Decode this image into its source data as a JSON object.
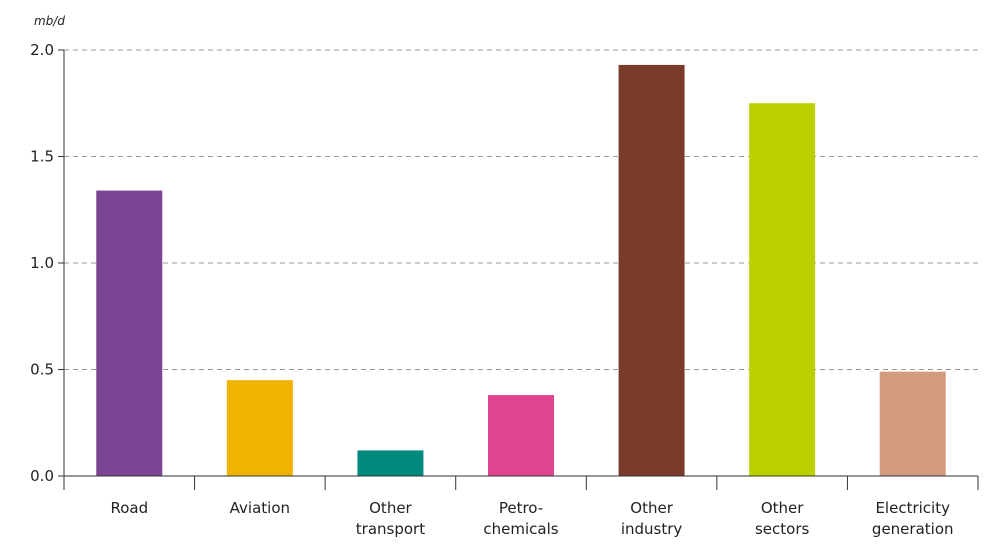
{
  "chart_data": {
    "type": "bar",
    "unit": "mb/d",
    "categories": [
      [
        "Road"
      ],
      [
        "Aviation"
      ],
      [
        "Other",
        "transport"
      ],
      [
        "Petro-",
        "chemicals"
      ],
      [
        "Other",
        "industry"
      ],
      [
        "Other",
        "sectors"
      ],
      [
        "Electricity",
        "generation"
      ]
    ],
    "values": [
      1.34,
      0.45,
      0.12,
      0.38,
      1.93,
      1.75,
      0.49
    ],
    "colors": [
      "#7b4593",
      "#f0b400",
      "#008a7d",
      "#e0448e",
      "#7b3b2b",
      "#bcd000",
      "#d49a7e"
    ],
    "ylim": [
      0,
      2.0
    ],
    "yticks": [
      "0.0",
      "0.5",
      "1.0",
      "1.5",
      "2.0"
    ],
    "grid": true,
    "legend": "none"
  }
}
